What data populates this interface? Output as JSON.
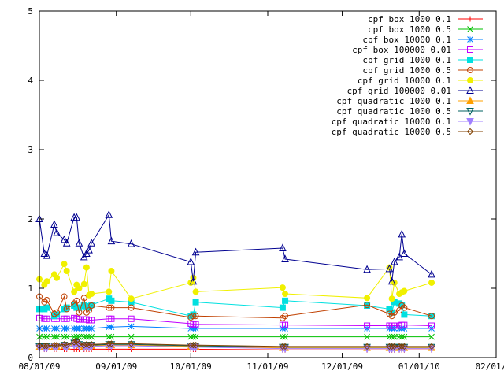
{
  "chart_data": {
    "type": "line",
    "title": "",
    "xlabel": "",
    "ylabel": "",
    "x_axis": {
      "type": "date",
      "range": [
        "2009-08-01",
        "2010-02-01"
      ],
      "ticks": [
        {
          "value": "2009-08-01",
          "label": "08/01/09"
        },
        {
          "value": "2009-09-01",
          "label": "09/01/09"
        },
        {
          "value": "2009-10-01",
          "label": "10/01/09"
        },
        {
          "value": "2009-11-01",
          "label": "11/01/09"
        },
        {
          "value": "2009-12-01",
          "label": "12/01/09"
        },
        {
          "value": "2010-01-01",
          "label": "01/01/10"
        },
        {
          "value": "2010-02-01",
          "label": "02/01/10"
        }
      ]
    },
    "y_axis": {
      "range": [
        0,
        5
      ],
      "ticks": [
        0,
        1,
        2,
        3,
        4,
        5
      ]
    },
    "grid": false,
    "legend": {
      "position": "top-right"
    },
    "x": [
      "2009-08-01",
      "2009-08-03",
      "2009-08-04",
      "2009-08-07",
      "2009-08-08",
      "2009-08-11",
      "2009-08-12",
      "2009-08-15",
      "2009-08-16",
      "2009-08-17",
      "2009-08-19",
      "2009-08-20",
      "2009-08-21",
      "2009-08-22",
      "2009-08-29",
      "2009-08-30",
      "2009-09-07",
      "2009-10-01",
      "2009-10-02",
      "2009-10-03",
      "2009-11-07",
      "2009-11-08",
      "2009-12-11",
      "2009-12-20",
      "2009-12-21",
      "2009-12-22",
      "2009-12-24",
      "2009-12-25",
      "2009-12-26",
      "2010-01-06"
    ],
    "series": [
      {
        "name": "cpf box 1000 0.1",
        "color": "#ff0000",
        "marker": "plus",
        "values": [
          0.12,
          0.12,
          0.12,
          0.12,
          0.12,
          0.12,
          0.12,
          0.12,
          0.12,
          0.12,
          0.12,
          0.12,
          0.12,
          0.12,
          0.12,
          0.12,
          0.12,
          0.12,
          0.12,
          0.12,
          0.11,
          0.11,
          0.11,
          0.11,
          0.11,
          0.11,
          0.11,
          0.11,
          0.11,
          0.11
        ]
      },
      {
        "name": "cpf box 1000 0.5",
        "color": "#00c000",
        "marker": "x",
        "values": [
          0.3,
          0.3,
          0.3,
          0.3,
          0.3,
          0.3,
          0.3,
          0.3,
          0.3,
          0.3,
          0.3,
          0.3,
          0.3,
          0.3,
          0.3,
          0.3,
          0.3,
          0.3,
          0.3,
          0.3,
          0.3,
          0.3,
          0.3,
          0.3,
          0.3,
          0.3,
          0.3,
          0.3,
          0.3,
          0.3
        ]
      },
      {
        "name": "cpf box 10000 0.1",
        "color": "#0080ff",
        "marker": "star",
        "values": [
          0.42,
          0.42,
          0.42,
          0.42,
          0.42,
          0.42,
          0.42,
          0.42,
          0.42,
          0.42,
          0.42,
          0.42,
          0.42,
          0.42,
          0.44,
          0.44,
          0.45,
          0.42,
          0.42,
          0.42,
          0.42,
          0.42,
          0.42,
          0.42,
          0.42,
          0.42,
          0.42,
          0.42,
          0.42,
          0.42
        ]
      },
      {
        "name": "cpf box 100000 0.01",
        "color": "#c000ff",
        "marker": "square",
        "values": [
          0.57,
          0.56,
          0.56,
          0.56,
          0.56,
          0.56,
          0.56,
          0.57,
          0.56,
          0.55,
          0.55,
          0.55,
          0.54,
          0.54,
          0.56,
          0.56,
          0.56,
          0.49,
          0.48,
          0.48,
          0.47,
          0.47,
          0.46,
          0.46,
          0.46,
          0.46,
          0.46,
          0.47,
          0.47,
          0.46
        ]
      },
      {
        "name": "cpf grid 1000 0.1",
        "color": "#00e0e0",
        "marker": "filled-square",
        "values": [
          0.7,
          0.7,
          0.72,
          0.6,
          0.62,
          0.7,
          0.72,
          0.75,
          0.72,
          0.72,
          0.75,
          0.74,
          0.72,
          0.76,
          0.85,
          0.82,
          0.8,
          0.6,
          0.62,
          0.8,
          0.72,
          0.82,
          0.75,
          0.7,
          0.65,
          0.8,
          0.78,
          0.76,
          0.62,
          0.6
        ]
      },
      {
        "name": "cpf grid 1000 0.5",
        "color": "#c04000",
        "marker": "circle",
        "values": [
          0.88,
          0.8,
          0.83,
          0.63,
          0.65,
          0.88,
          0.7,
          0.78,
          0.82,
          0.65,
          0.86,
          0.65,
          0.68,
          0.75,
          0.72,
          0.72,
          0.72,
          0.58,
          0.6,
          0.6,
          0.57,
          0.6,
          0.76,
          0.63,
          0.6,
          0.65,
          0.68,
          0.75,
          0.72,
          0.6
        ]
      },
      {
        "name": "cpf grid 10000 0.1",
        "color": "#f0f000",
        "marker": "filled-circle",
        "values": [
          1.13,
          1.05,
          1.1,
          1.2,
          1.15,
          1.35,
          1.25,
          0.95,
          1.05,
          1.0,
          1.06,
          1.3,
          0.9,
          0.92,
          0.95,
          1.25,
          0.85,
          1.08,
          1.15,
          0.95,
          1.01,
          0.92,
          0.86,
          1.3,
          0.85,
          1.08,
          0.92,
          0.94,
          0.96,
          1.08
        ]
      },
      {
        "name": "cpf grid 100000 0.01",
        "color": "#000090",
        "marker": "triangle",
        "values": [
          2.0,
          1.5,
          1.47,
          1.92,
          1.8,
          1.7,
          1.65,
          2.02,
          2.02,
          1.65,
          1.45,
          1.5,
          1.55,
          1.65,
          2.06,
          1.68,
          1.64,
          1.38,
          1.1,
          1.52,
          1.58,
          1.42,
          1.27,
          1.28,
          1.1,
          1.38,
          1.45,
          1.78,
          1.5,
          1.2
        ]
      },
      {
        "name": "cpf quadratic 1000 0.1",
        "color": "#ffa000",
        "marker": "filled-triangle",
        "values": [
          0.15,
          0.15,
          0.15,
          0.16,
          0.16,
          0.17,
          0.16,
          0.2,
          0.22,
          0.18,
          0.16,
          0.17,
          0.16,
          0.17,
          0.18,
          0.18,
          0.18,
          0.16,
          0.16,
          0.16,
          0.14,
          0.14,
          0.14,
          0.14,
          0.14,
          0.14,
          0.14,
          0.14,
          0.14,
          0.14
        ]
      },
      {
        "name": "cpf quadratic 1000 0.5",
        "color": "#006060",
        "marker": "inverted-triangle",
        "values": [
          0.16,
          0.16,
          0.16,
          0.17,
          0.17,
          0.18,
          0.17,
          0.21,
          0.22,
          0.19,
          0.17,
          0.18,
          0.17,
          0.18,
          0.19,
          0.19,
          0.19,
          0.17,
          0.17,
          0.17,
          0.15,
          0.15,
          0.15,
          0.15,
          0.15,
          0.15,
          0.15,
          0.15,
          0.15,
          0.15
        ]
      },
      {
        "name": "cpf quadratic 10000 0.1",
        "color": "#a080ff",
        "marker": "filled-inverted-triangle",
        "values": [
          0.14,
          0.14,
          0.14,
          0.15,
          0.15,
          0.16,
          0.15,
          0.18,
          0.2,
          0.17,
          0.15,
          0.16,
          0.15,
          0.16,
          0.17,
          0.17,
          0.17,
          0.15,
          0.15,
          0.15,
          0.13,
          0.13,
          0.13,
          0.13,
          0.13,
          0.13,
          0.13,
          0.13,
          0.13,
          0.13
        ]
      },
      {
        "name": "cpf quadratic 10000 0.5",
        "color": "#804000",
        "marker": "diamond",
        "values": [
          0.17,
          0.17,
          0.17,
          0.18,
          0.18,
          0.19,
          0.18,
          0.22,
          0.24,
          0.2,
          0.18,
          0.19,
          0.18,
          0.19,
          0.2,
          0.2,
          0.2,
          0.18,
          0.18,
          0.18,
          0.16,
          0.16,
          0.16,
          0.16,
          0.16,
          0.16,
          0.16,
          0.16,
          0.16,
          0.16
        ]
      }
    ]
  }
}
